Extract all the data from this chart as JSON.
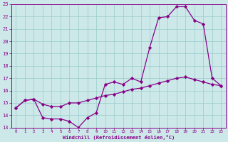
{
  "xlabel": "Windchill (Refroidissement éolien,°C)",
  "background_color": "#cce8e8",
  "line_color": "#880088",
  "grid_color": "#99cccc",
  "xlim": [
    -0.5,
    23.5
  ],
  "ylim": [
    13,
    23
  ],
  "xticks": [
    0,
    1,
    2,
    3,
    4,
    5,
    6,
    7,
    8,
    9,
    10,
    11,
    12,
    13,
    14,
    15,
    16,
    17,
    18,
    19,
    20,
    21,
    22,
    23
  ],
  "yticks": [
    13,
    14,
    15,
    16,
    17,
    18,
    19,
    20,
    21,
    22,
    23
  ],
  "line1_x": [
    0,
    1,
    2,
    3,
    4,
    5,
    6,
    7,
    8,
    9,
    10,
    11,
    12,
    13,
    14,
    15,
    16,
    17,
    18,
    19,
    20,
    21,
    22,
    23
  ],
  "line1_y": [
    14.6,
    15.2,
    15.3,
    14.9,
    14.7,
    14.7,
    15.0,
    15.0,
    15.2,
    15.4,
    15.6,
    15.7,
    15.9,
    16.1,
    16.2,
    16.4,
    16.6,
    16.8,
    17.0,
    17.1,
    16.9,
    16.7,
    16.5,
    16.4
  ],
  "line2_x": [
    0,
    1,
    2,
    3,
    4,
    5,
    6,
    7,
    8,
    9,
    10,
    11,
    12,
    13,
    14,
    15,
    16,
    17,
    18,
    19,
    20,
    21,
    22,
    23
  ],
  "line2_y": [
    14.6,
    15.2,
    15.3,
    13.8,
    13.7,
    13.7,
    13.5,
    13.0,
    13.8,
    14.2,
    16.5,
    16.7,
    16.5,
    17.0,
    16.7,
    19.5,
    21.9,
    22.0,
    22.8,
    22.8,
    21.7,
    21.4,
    17.0,
    16.4
  ],
  "marker": "D",
  "markersize": 2.2,
  "linewidth": 0.9
}
